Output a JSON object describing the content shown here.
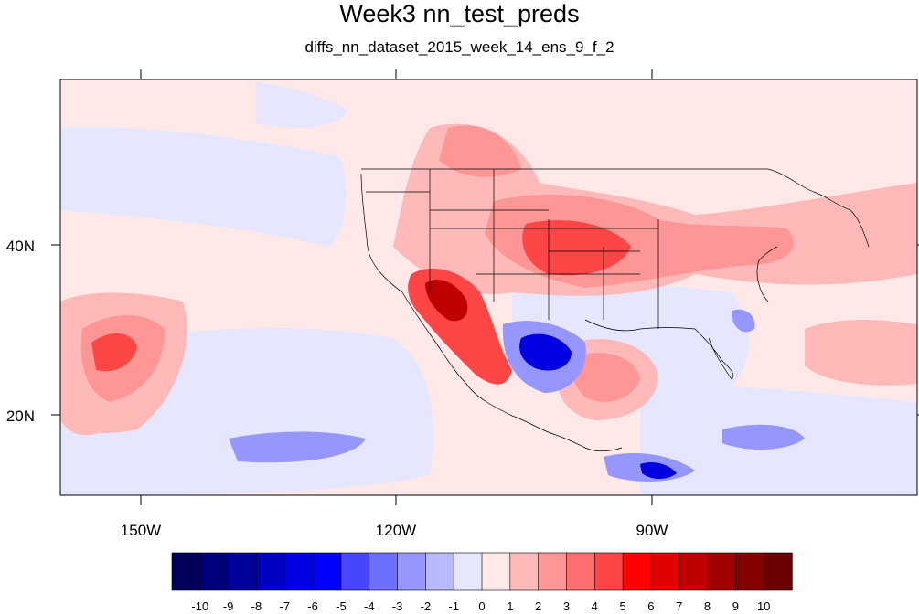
{
  "title": "Week3 nn_test_preds",
  "subtitle": "diffs_nn_dataset_2015_week_14_ens_9_f_2",
  "map": {
    "projection": "cylindrical-equidistant",
    "lon_range": [
      -160,
      -62
    ],
    "lat_range": [
      11,
      60
    ],
    "x_tick_labels": [
      {
        "lon": -150,
        "label": "150W"
      },
      {
        "lon": -120,
        "label": "120W"
      },
      {
        "lon": -90,
        "label": "90W"
      }
    ],
    "y_tick_labels": [
      {
        "lat": 40,
        "label": "40N"
      },
      {
        "lat": 20,
        "label": "20N"
      }
    ],
    "background_color": "#ffe8e8",
    "features": [
      "coastlines",
      "us-state-borders",
      "country-borders"
    ]
  },
  "colorbar": {
    "labels": [
      "-10",
      "-9",
      "-8",
      "-7",
      "-6",
      "-5",
      "-4",
      "-3",
      "-2",
      "-1",
      "0",
      "1",
      "2",
      "3",
      "4",
      "5",
      "6",
      "7",
      "8",
      "9",
      "10"
    ],
    "colors": [
      "#00005a",
      "#00007a",
      "#00009a",
      "#0000c0",
      "#0000e0",
      "#0000ff",
      "#4646ff",
      "#6e6eff",
      "#9696ff",
      "#b9b9ff",
      "#e6e6ff",
      "#ffe8e8",
      "#ffb9b9",
      "#ff9696",
      "#ff6e6e",
      "#ff4646",
      "#ff0000",
      "#e00000",
      "#c00000",
      "#a00000",
      "#870000",
      "#6a0000"
    ]
  }
}
